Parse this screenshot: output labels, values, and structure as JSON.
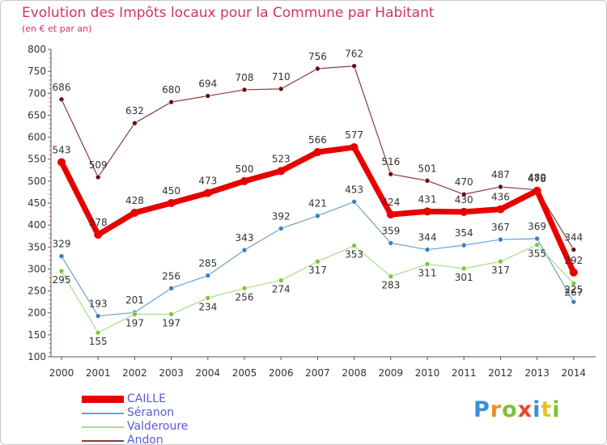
{
  "title": "Evolution des Impôts locaux pour la Commune par Habitant",
  "subtitle": "(en € et par an)",
  "brand": {
    "text": "Proxiti",
    "letters": [
      {
        "ch": "P",
        "color": "#3a8fd8"
      },
      {
        "ch": "r",
        "color": "#e8912a"
      },
      {
        "ch": "o",
        "color": "#7cc23a"
      },
      {
        "ch": "x",
        "color": "#e8462a"
      },
      {
        "ch": "i",
        "color": "#3a8fd8"
      },
      {
        "ch": "t",
        "color": "#e8c02a"
      },
      {
        "ch": "i",
        "color": "#7cc23a"
      }
    ]
  },
  "chart_data": {
    "type": "line",
    "x": [
      "2000",
      "2001",
      "2002",
      "2003",
      "2004",
      "2005",
      "2006",
      "2007",
      "2008",
      "2009",
      "2010",
      "2011",
      "2012",
      "2013",
      "2014"
    ],
    "ylim": [
      100,
      800
    ],
    "yticks": [
      100,
      150,
      200,
      250,
      300,
      350,
      400,
      450,
      500,
      550,
      600,
      650,
      700,
      750,
      800
    ],
    "grid": false,
    "legend_position": "bottom-left",
    "series": [
      {
        "name": "CAILLE",
        "color": "#e80000",
        "point_color": "#e80000",
        "width": 7,
        "values": [
          543,
          378,
          428,
          450,
          473,
          500,
          523,
          566,
          577,
          424,
          431,
          430,
          436,
          478,
          292
        ]
      },
      {
        "name": "Séranon",
        "color": "#6aa0d0",
        "point_color": "#3a7fc0",
        "width": 1.2,
        "values": [
          329,
          193,
          201,
          256,
          285,
          343,
          392,
          421,
          453,
          359,
          344,
          354,
          367,
          369,
          225
        ]
      },
      {
        "name": "Valderoure",
        "color": "#a8de8a",
        "point_color": "#7cc83a",
        "width": 1.2,
        "values": [
          295,
          155,
          197,
          197,
          234,
          256,
          274,
          317,
          353,
          283,
          311,
          301,
          317,
          355,
          267
        ]
      },
      {
        "name": "Andon",
        "color": "#8a3a3a",
        "point_color": "#6a1010",
        "width": 1.2,
        "values": [
          686,
          509,
          632,
          680,
          694,
          708,
          710,
          756,
          762,
          516,
          501,
          470,
          487,
          480,
          344
        ]
      }
    ]
  }
}
